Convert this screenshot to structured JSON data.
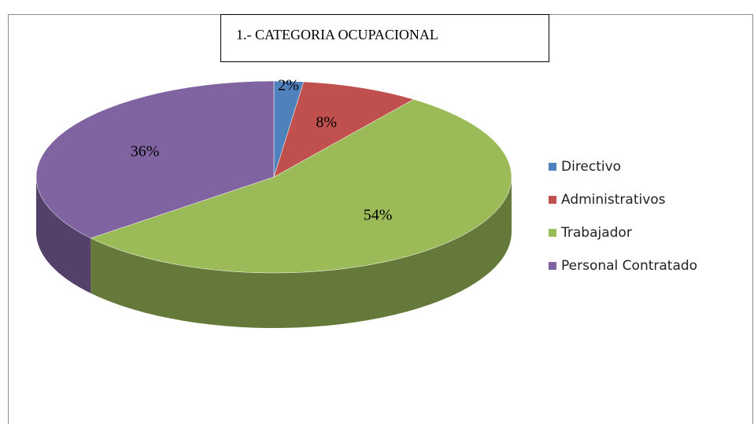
{
  "chart_data": {
    "type": "pie",
    "title": "1.- CATEGORIA OCUPACIONAL",
    "categories": [
      "Directivo",
      "Administrativos",
      "Trabajador",
      "Personal Contratado"
    ],
    "values": [
      2,
      8,
      54,
      36
    ],
    "value_labels": [
      "2%",
      "8%",
      "54%",
      "36%"
    ],
    "colors": [
      "#4f81bd",
      "#c0504d",
      "#9bbb59",
      "#8064a2"
    ],
    "legend": "right"
  }
}
